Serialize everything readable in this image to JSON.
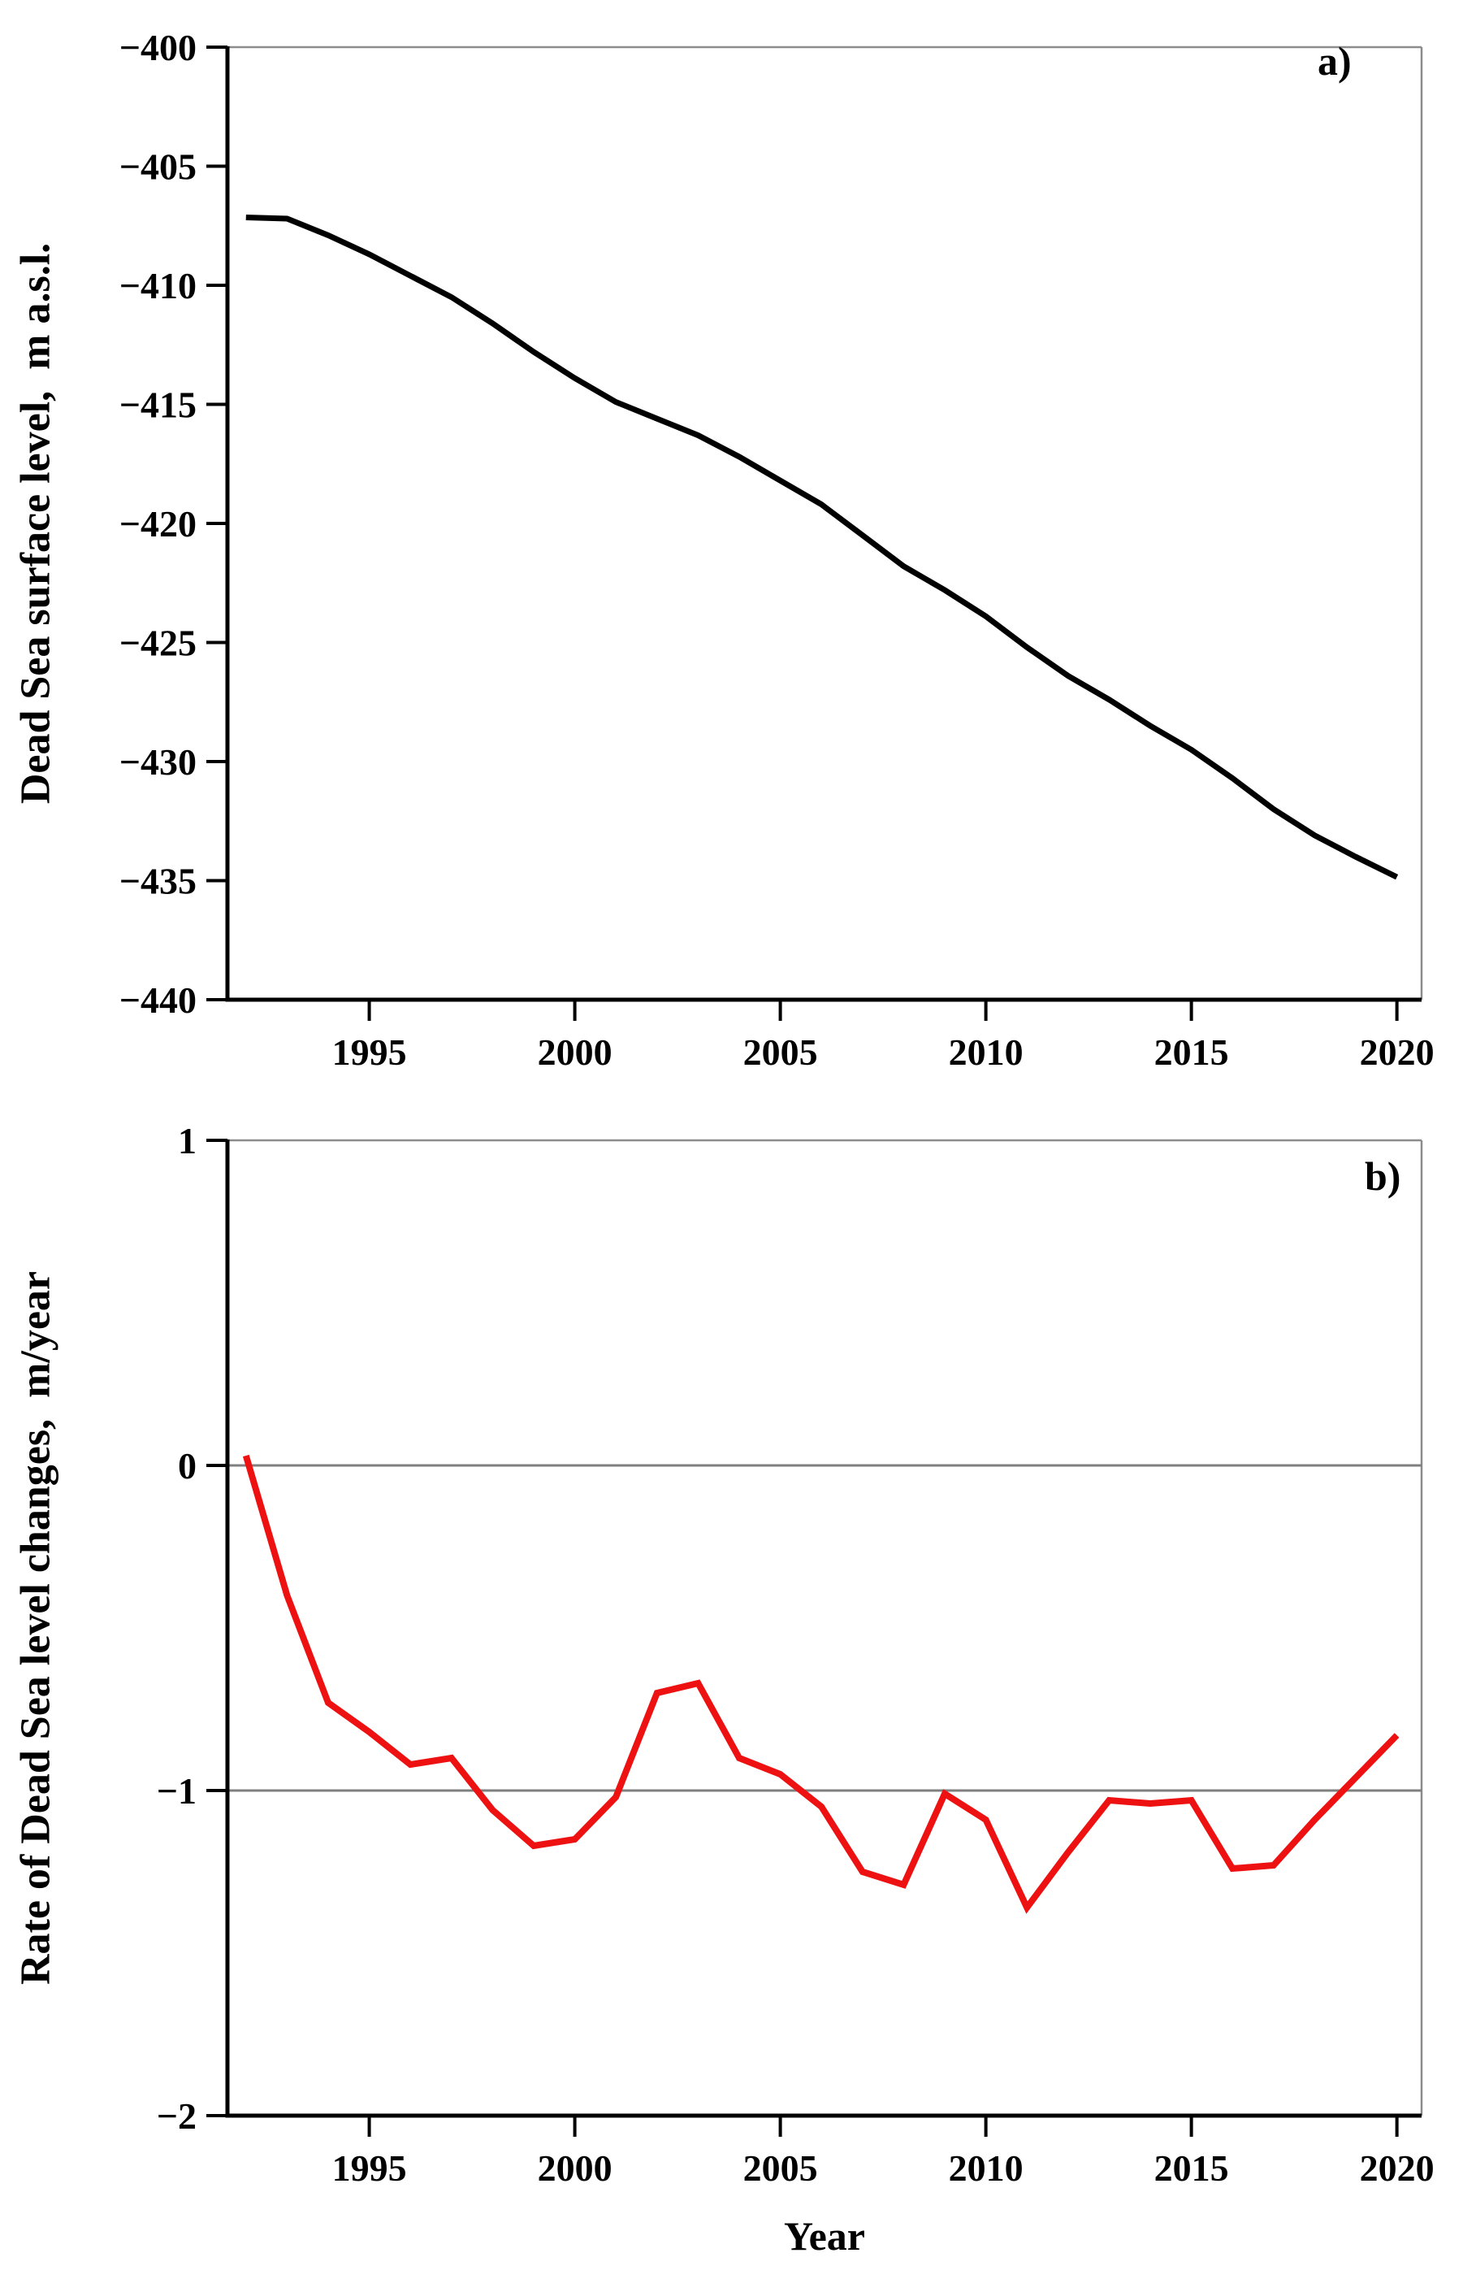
{
  "figure": {
    "panel_a_label": "a)",
    "panel_b_label": "b)",
    "xlabel": "Year"
  },
  "colors": {
    "level_line": "#000000",
    "rate_line": "#ee1111",
    "gridline": "#7f7f7f",
    "border": "#8c8c8c",
    "axis": "#000000"
  },
  "chart_data": [
    {
      "type": "line",
      "panel": "a",
      "title": "",
      "xlabel": "",
      "ylabel": "Dead Sea surface level,  m a.s.l.",
      "xlim": [
        1991.55,
        2020.6
      ],
      "ylim": [
        -440,
        -400
      ],
      "grid": false,
      "x_ticks": {
        "values": [
          1995,
          2000,
          2005,
          2010,
          2015,
          2020
        ],
        "labels": [
          "1995",
          "2000",
          "2005",
          "2010",
          "2015",
          "2020"
        ]
      },
      "y_ticks": {
        "values": [
          -400,
          -405,
          -410,
          -415,
          -420,
          -425,
          -430,
          -435,
          -440
        ],
        "labels": [
          "−400",
          "−405",
          "−410",
          "−415",
          "−420",
          "−425",
          "−430",
          "−435",
          "−440"
        ]
      },
      "gridlines_at": [],
      "series": [
        {
          "name": "Dead Sea surface level",
          "color": "#000000",
          "x": [
            1992,
            1993,
            1994,
            1995,
            1996,
            1997,
            1998,
            1999,
            2000,
            2001,
            2002,
            2003,
            2004,
            2005,
            2006,
            2007,
            2008,
            2009,
            2010,
            2011,
            2012,
            2013,
            2014,
            2015,
            2016,
            2017,
            2018,
            2019,
            2020
          ],
          "y": [
            -407.15,
            -407.2,
            -407.9,
            -408.7,
            -409.6,
            -410.5,
            -411.6,
            -412.8,
            -413.9,
            -414.9,
            -415.6,
            -416.3,
            -417.2,
            -418.2,
            -419.2,
            -420.5,
            -421.8,
            -422.8,
            -423.9,
            -425.2,
            -426.4,
            -427.4,
            -428.5,
            -429.5,
            -430.7,
            -432.0,
            -433.1,
            -434.0,
            -434.85
          ]
        }
      ]
    },
    {
      "type": "line",
      "panel": "b",
      "title": "",
      "xlabel": "Year",
      "ylabel": "Rate of Dead Sea level changes,  m/year",
      "xlim": [
        1991.55,
        2020.6
      ],
      "ylim": [
        -2,
        1
      ],
      "grid": false,
      "x_ticks": {
        "values": [
          1995,
          2000,
          2005,
          2010,
          2015,
          2020
        ],
        "labels": [
          "1995",
          "2000",
          "2005",
          "2010",
          "2015",
          "2020"
        ]
      },
      "y_ticks": {
        "values": [
          1,
          0,
          -1,
          -2
        ],
        "labels": [
          "1",
          "0",
          "−1",
          "−2"
        ]
      },
      "gridlines_at": [
        0,
        -1
      ],
      "series": [
        {
          "name": "Rate of Dead Sea level changes",
          "color": "#ee1111",
          "x": [
            1992,
            1993,
            1994,
            1995,
            1996,
            1997,
            1998,
            1999,
            2000,
            2001,
            2002,
            2003,
            2004,
            2005,
            2006,
            2007,
            2008,
            2009,
            2010,
            2011,
            2012,
            2013,
            2014,
            2015,
            2016,
            2017,
            2018,
            2019,
            2020
          ],
          "y": [
            0.03,
            -0.4,
            -0.73,
            -0.82,
            -0.92,
            -0.9,
            -1.06,
            -1.17,
            -1.15,
            -1.02,
            -0.7,
            -0.67,
            -0.9,
            -0.95,
            -1.05,
            -1.25,
            -1.29,
            -1.01,
            -1.09,
            -1.36,
            -1.19,
            -1.03,
            -1.04,
            -1.03,
            -1.24,
            -1.23,
            -1.09,
            -0.96,
            -0.83
          ]
        }
      ]
    }
  ]
}
